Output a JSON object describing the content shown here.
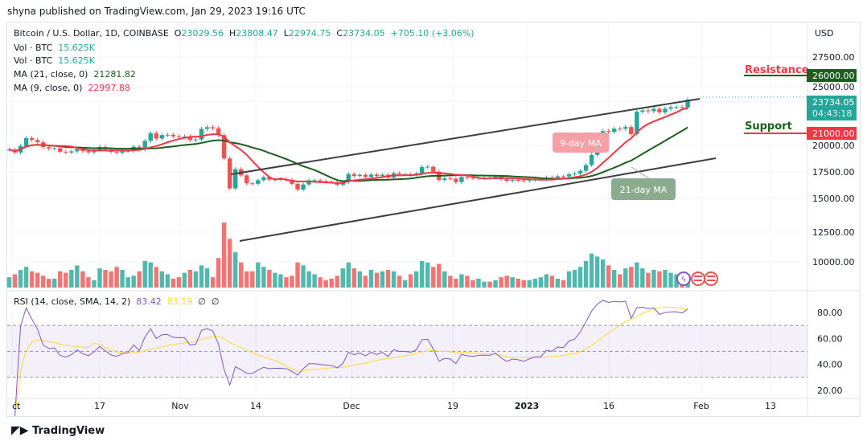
{
  "header": {
    "published": "shyna published on TradingView.com, Jan 29, 2023 19:16 UTC"
  },
  "legend": {
    "symbol": "Bitcoin / U.S. Dollar, 1D, COINBASE",
    "o_label": "O",
    "o": "23029.56",
    "h_label": "H",
    "h": "23808.47",
    "l_label": "L",
    "l": "22974.75",
    "c_label": "C",
    "c": "23734.05",
    "change": "+705.10 (+3.06%)",
    "vol1_label": "Vol · BTC",
    "vol1": "15.625K",
    "vol2_label": "Vol · BTC",
    "vol2": "15.625K",
    "ma21_label": "MA (21, close, 0)",
    "ma21": "21281.82",
    "ma9_label": "MA (9, close, 0)",
    "ma9": "22997.88",
    "rsi_label": "RSI (14, close, SMA, 14, 2)",
    "rsi": "83.42",
    "rsi_sma": "83.19",
    "na1": "∅",
    "na2": "∅"
  },
  "price_axis": {
    "currency": "USD",
    "ticks": [
      "27500.00",
      "25000.00",
      "20000.00",
      "17500.00",
      "15000.00",
      "12500.00",
      "10000.00"
    ],
    "last_price": "23734.05",
    "countdown": "04:43:18",
    "resistance_tag": "26000.00",
    "support_tag": "21000.00"
  },
  "rsi_axis": {
    "ticks": [
      "80.00",
      "60.00",
      "40.00",
      "20.00"
    ]
  },
  "time_axis": {
    "ticks": [
      "ct",
      "17",
      "Nov",
      "14",
      "Dec",
      "19",
      "2023",
      "16",
      "Feb",
      "13"
    ]
  },
  "annotations": {
    "resistance": "Resistance",
    "support": "Support",
    "ma9": "9-day MA",
    "ma21": "21-day MA"
  },
  "colors": {
    "up": "#26a69a",
    "down": "#ef5350",
    "ma9": "#f23645",
    "ma21": "#1b5e20",
    "rsi": "#7e57c2",
    "rsi_sma": "#fdd835",
    "resistance_text": "#f23645",
    "support_text": "#1b5e20"
  },
  "footer": {
    "brand": "TradingView"
  },
  "chart_data": {
    "type": "candlestick",
    "start_date": "2022-10-01",
    "interval": "1D",
    "yscale": "price",
    "ylim": [
      8000,
      28500
    ],
    "close": [
      19310,
      19060,
      19630,
      20340,
      20160,
      19960,
      19530,
      19420,
      19440,
      19130,
      19060,
      19160,
      19380,
      19180,
      19070,
      19260,
      19550,
      19330,
      19120,
      19040,
      19170,
      19210,
      19570,
      19330,
      20090,
      20770,
      20290,
      20600,
      20630,
      20490,
      20480,
      20480,
      20150,
      20210,
      21150,
      21300,
      21200,
      20600,
      18540,
      15880,
      17590,
      17040,
      16330,
      16290,
      16610,
      16880,
      16660,
      16690,
      16700,
      16640,
      16290,
      15780,
      16230,
      16600,
      16600,
      16520,
      16460,
      16430,
      16210,
      16440,
      17160,
      16980,
      17090,
      16890,
      17110,
      16970,
      17090,
      16840,
      17230,
      17130,
      17130,
      17090,
      17210,
      17780,
      17800,
      17360,
      16630,
      16770,
      16740,
      16440,
      16900,
      16820,
      16780,
      16830,
      16840,
      16830,
      16920,
      16710,
      16550,
      16630,
      16600,
      16540,
      16610,
      16670,
      16670,
      16850,
      16830,
      16950,
      16940,
      17130,
      17190,
      17440,
      17950,
      18850,
      19930,
      20950,
      20870,
      21170,
      21150,
      21310,
      20680,
      22670,
      22780,
      22710,
      22920,
      22610,
      22930,
      23060,
      23080,
      23030,
      23734
    ],
    "volume": [
      14,
      18,
      24,
      28,
      22,
      20,
      16,
      12,
      12,
      22,
      20,
      24,
      30,
      22,
      14,
      10,
      26,
      24,
      22,
      28,
      24,
      14,
      16,
      22,
      36,
      34,
      28,
      22,
      18,
      12,
      14,
      20,
      24,
      22,
      30,
      26,
      14,
      40,
      88,
      66,
      48,
      34,
      22,
      22,
      34,
      28,
      24,
      20,
      18,
      14,
      16,
      34,
      30,
      22,
      18,
      14,
      10,
      12,
      16,
      26,
      34,
      26,
      22,
      16,
      24,
      20,
      22,
      24,
      22,
      16,
      10,
      18,
      22,
      36,
      34,
      28,
      32,
      22,
      16,
      12,
      18,
      16,
      10,
      12,
      8,
      8,
      10,
      14,
      16,
      14,
      12,
      10,
      10,
      12,
      14,
      18,
      16,
      12,
      10,
      22,
      24,
      28,
      36,
      46,
      42,
      38,
      30,
      24,
      18,
      26,
      28,
      34,
      26,
      20,
      24,
      22,
      24,
      20,
      18,
      16,
      15.625
    ],
    "title": "",
    "xlabel": "",
    "ylabel": "USD"
  }
}
